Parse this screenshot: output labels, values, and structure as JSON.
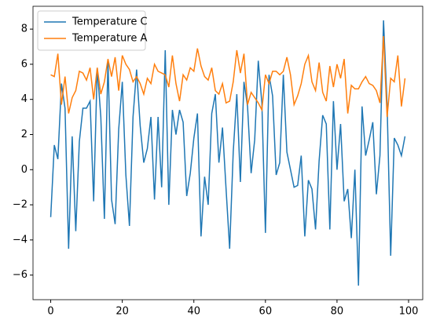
{
  "chart_data": {
    "type": "line",
    "x": [
      0,
      1,
      2,
      3,
      4,
      5,
      6,
      7,
      8,
      9,
      10,
      11,
      12,
      13,
      14,
      15,
      16,
      17,
      18,
      19,
      20,
      21,
      22,
      23,
      24,
      25,
      26,
      27,
      28,
      29,
      30,
      31,
      32,
      33,
      34,
      35,
      36,
      37,
      38,
      39,
      40,
      41,
      42,
      43,
      44,
      45,
      46,
      47,
      48,
      49,
      50,
      51,
      52,
      53,
      54,
      55,
      56,
      57,
      58,
      59,
      60,
      61,
      62,
      63,
      64,
      65,
      66,
      67,
      68,
      69,
      70,
      71,
      72,
      73,
      74,
      75,
      76,
      77,
      78,
      79,
      80,
      81,
      82,
      83,
      84,
      85,
      86,
      87,
      88,
      89,
      90,
      91,
      92,
      93,
      94,
      95,
      96,
      97,
      98,
      99
    ],
    "series": [
      {
        "name": "Temperature C",
        "color": "#1f77b4",
        "values": [
          -2.7,
          1.4,
          0.6,
          4.9,
          3.5,
          -4.5,
          1.9,
          -3.5,
          1.6,
          3.5,
          3.5,
          3.9,
          -1.8,
          5.8,
          3.0,
          -2.8,
          6.2,
          -1.7,
          -3.1,
          2.3,
          5.0,
          -0.3,
          -3.2,
          3.0,
          5.7,
          2.5,
          0.4,
          1.2,
          3.0,
          -1.7,
          3.0,
          -1.0,
          6.8,
          -2.0,
          3.4,
          2.0,
          3.4,
          2.7,
          -1.5,
          -0.2,
          1.8,
          3.2,
          -3.8,
          -0.4,
          -2.0,
          3.2,
          4.3,
          0.4,
          2.4,
          -1.1,
          -4.5,
          1.0,
          4.3,
          -0.7,
          5.0,
          3.6,
          -0.2,
          1.7,
          6.2,
          3.8,
          -3.6,
          5.4,
          4.2,
          -0.3,
          0.4,
          5.4,
          1.0,
          0.0,
          -1.0,
          -0.9,
          0.8,
          -3.8,
          -0.6,
          -1.1,
          -3.4,
          0.5,
          3.1,
          2.6,
          -3.4,
          3.9,
          0.0,
          2.6,
          -1.8,
          -1.1,
          -3.9,
          0.0,
          -6.6,
          3.6,
          0.8,
          1.7,
          2.7,
          -1.4,
          0.8,
          8.5,
          3.7,
          -4.9,
          1.8,
          1.4,
          0.8,
          1.9
        ]
      },
      {
        "name": "Temperature A",
        "color": "#ff7f0e",
        "values": [
          5.4,
          5.3,
          6.6,
          3.7,
          5.3,
          3.2,
          4.1,
          4.5,
          5.6,
          5.5,
          5.1,
          5.8,
          4.0,
          5.8,
          4.3,
          5.0,
          6.3,
          5.3,
          6.4,
          4.5,
          6.5,
          6.0,
          5.7,
          5.0,
          5.3,
          4.9,
          4.3,
          5.2,
          4.9,
          6.0,
          5.6,
          5.5,
          5.4,
          4.7,
          6.5,
          4.9,
          3.9,
          5.4,
          5.1,
          5.8,
          5.6,
          6.9,
          5.9,
          5.3,
          5.1,
          5.8,
          4.5,
          4.3,
          4.9,
          3.8,
          3.9,
          5.0,
          6.8,
          5.5,
          6.6,
          3.7,
          4.4,
          4.1,
          3.8,
          3.4,
          5.4,
          4.9,
          5.6,
          5.6,
          5.4,
          5.6,
          6.4,
          5.4,
          3.7,
          4.2,
          4.9,
          6.0,
          6.5,
          5.0,
          4.5,
          6.1,
          4.4,
          3.9,
          5.9,
          4.7,
          6.0,
          5.2,
          6.3,
          3.2,
          4.8,
          4.6,
          4.6,
          5.0,
          5.3,
          4.9,
          4.8,
          4.5,
          3.8,
          7.6,
          3.0,
          5.2,
          5.0,
          6.5,
          3.6,
          5.2
        ]
      }
    ],
    "xlim": [
      -4.95,
      103.95
    ],
    "ylim": [
      -7.4,
      9.3
    ],
    "xticks": [
      0,
      20,
      40,
      60,
      80,
      100
    ],
    "yticks": [
      {
        "value": -6,
        "label": "−6"
      },
      {
        "value": -4,
        "label": "−4"
      },
      {
        "value": -2,
        "label": "−2"
      },
      0,
      2,
      4,
      6,
      8
    ],
    "legend": "upper left"
  }
}
